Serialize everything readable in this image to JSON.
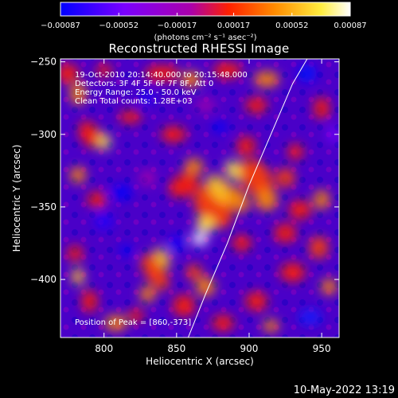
{
  "chart_data": {
    "type": "heatmap",
    "title": "Reconstructed RHESSI Image",
    "xlabel": "Heliocentric X (arcsec)",
    "ylabel": "Heliocentric Y (arcsec)",
    "xlim": [
      770,
      962
    ],
    "ylim": [
      -440,
      -248
    ],
    "x_ticks": [
      800,
      850,
      900,
      950
    ],
    "y_ticks": [
      -250,
      -300,
      -350,
      -400
    ],
    "colorbar": {
      "vmin": -0.00087,
      "vmax": 0.00087,
      "ticks": [
        -0.00087,
        -0.00052,
        -0.00017,
        0.00017,
        0.00052,
        0.00087
      ],
      "tick_labels": [
        "-0.00087",
        "-0.00052",
        "-0.00017",
        "0.00017",
        "0.00052",
        "0.00087"
      ],
      "unit_label": "(photons cm⁻² s⁻¹ asec⁻²)",
      "colormap": [
        "#0000ff",
        "#7a00ff",
        "#cc00aa",
        "#ff2000",
        "#ff8c00",
        "#ffee40",
        "#ffffff"
      ]
    },
    "annotations": [
      "19-Oct-2010 20:14:40.000 to 20:15:48.000",
      "Detectors: 3F 4F 5F 6F 7F 8F, Att 0",
      "Energy Range: 25.0 - 50.0 keV",
      "Clean     Total counts: 1.28E+03"
    ],
    "peak_label": "Position of Peak = [860,-373]",
    "peak": {
      "x": 860,
      "y": -373
    },
    "limb_curve": {
      "x": [
        858,
        870,
        885,
        900,
        915,
        930,
        940
      ],
      "y": [
        -440,
        -410,
        -375,
        -335,
        -300,
        -265,
        -248
      ]
    }
  },
  "footer": {
    "timestamp": "10-May-2022 13:19"
  }
}
